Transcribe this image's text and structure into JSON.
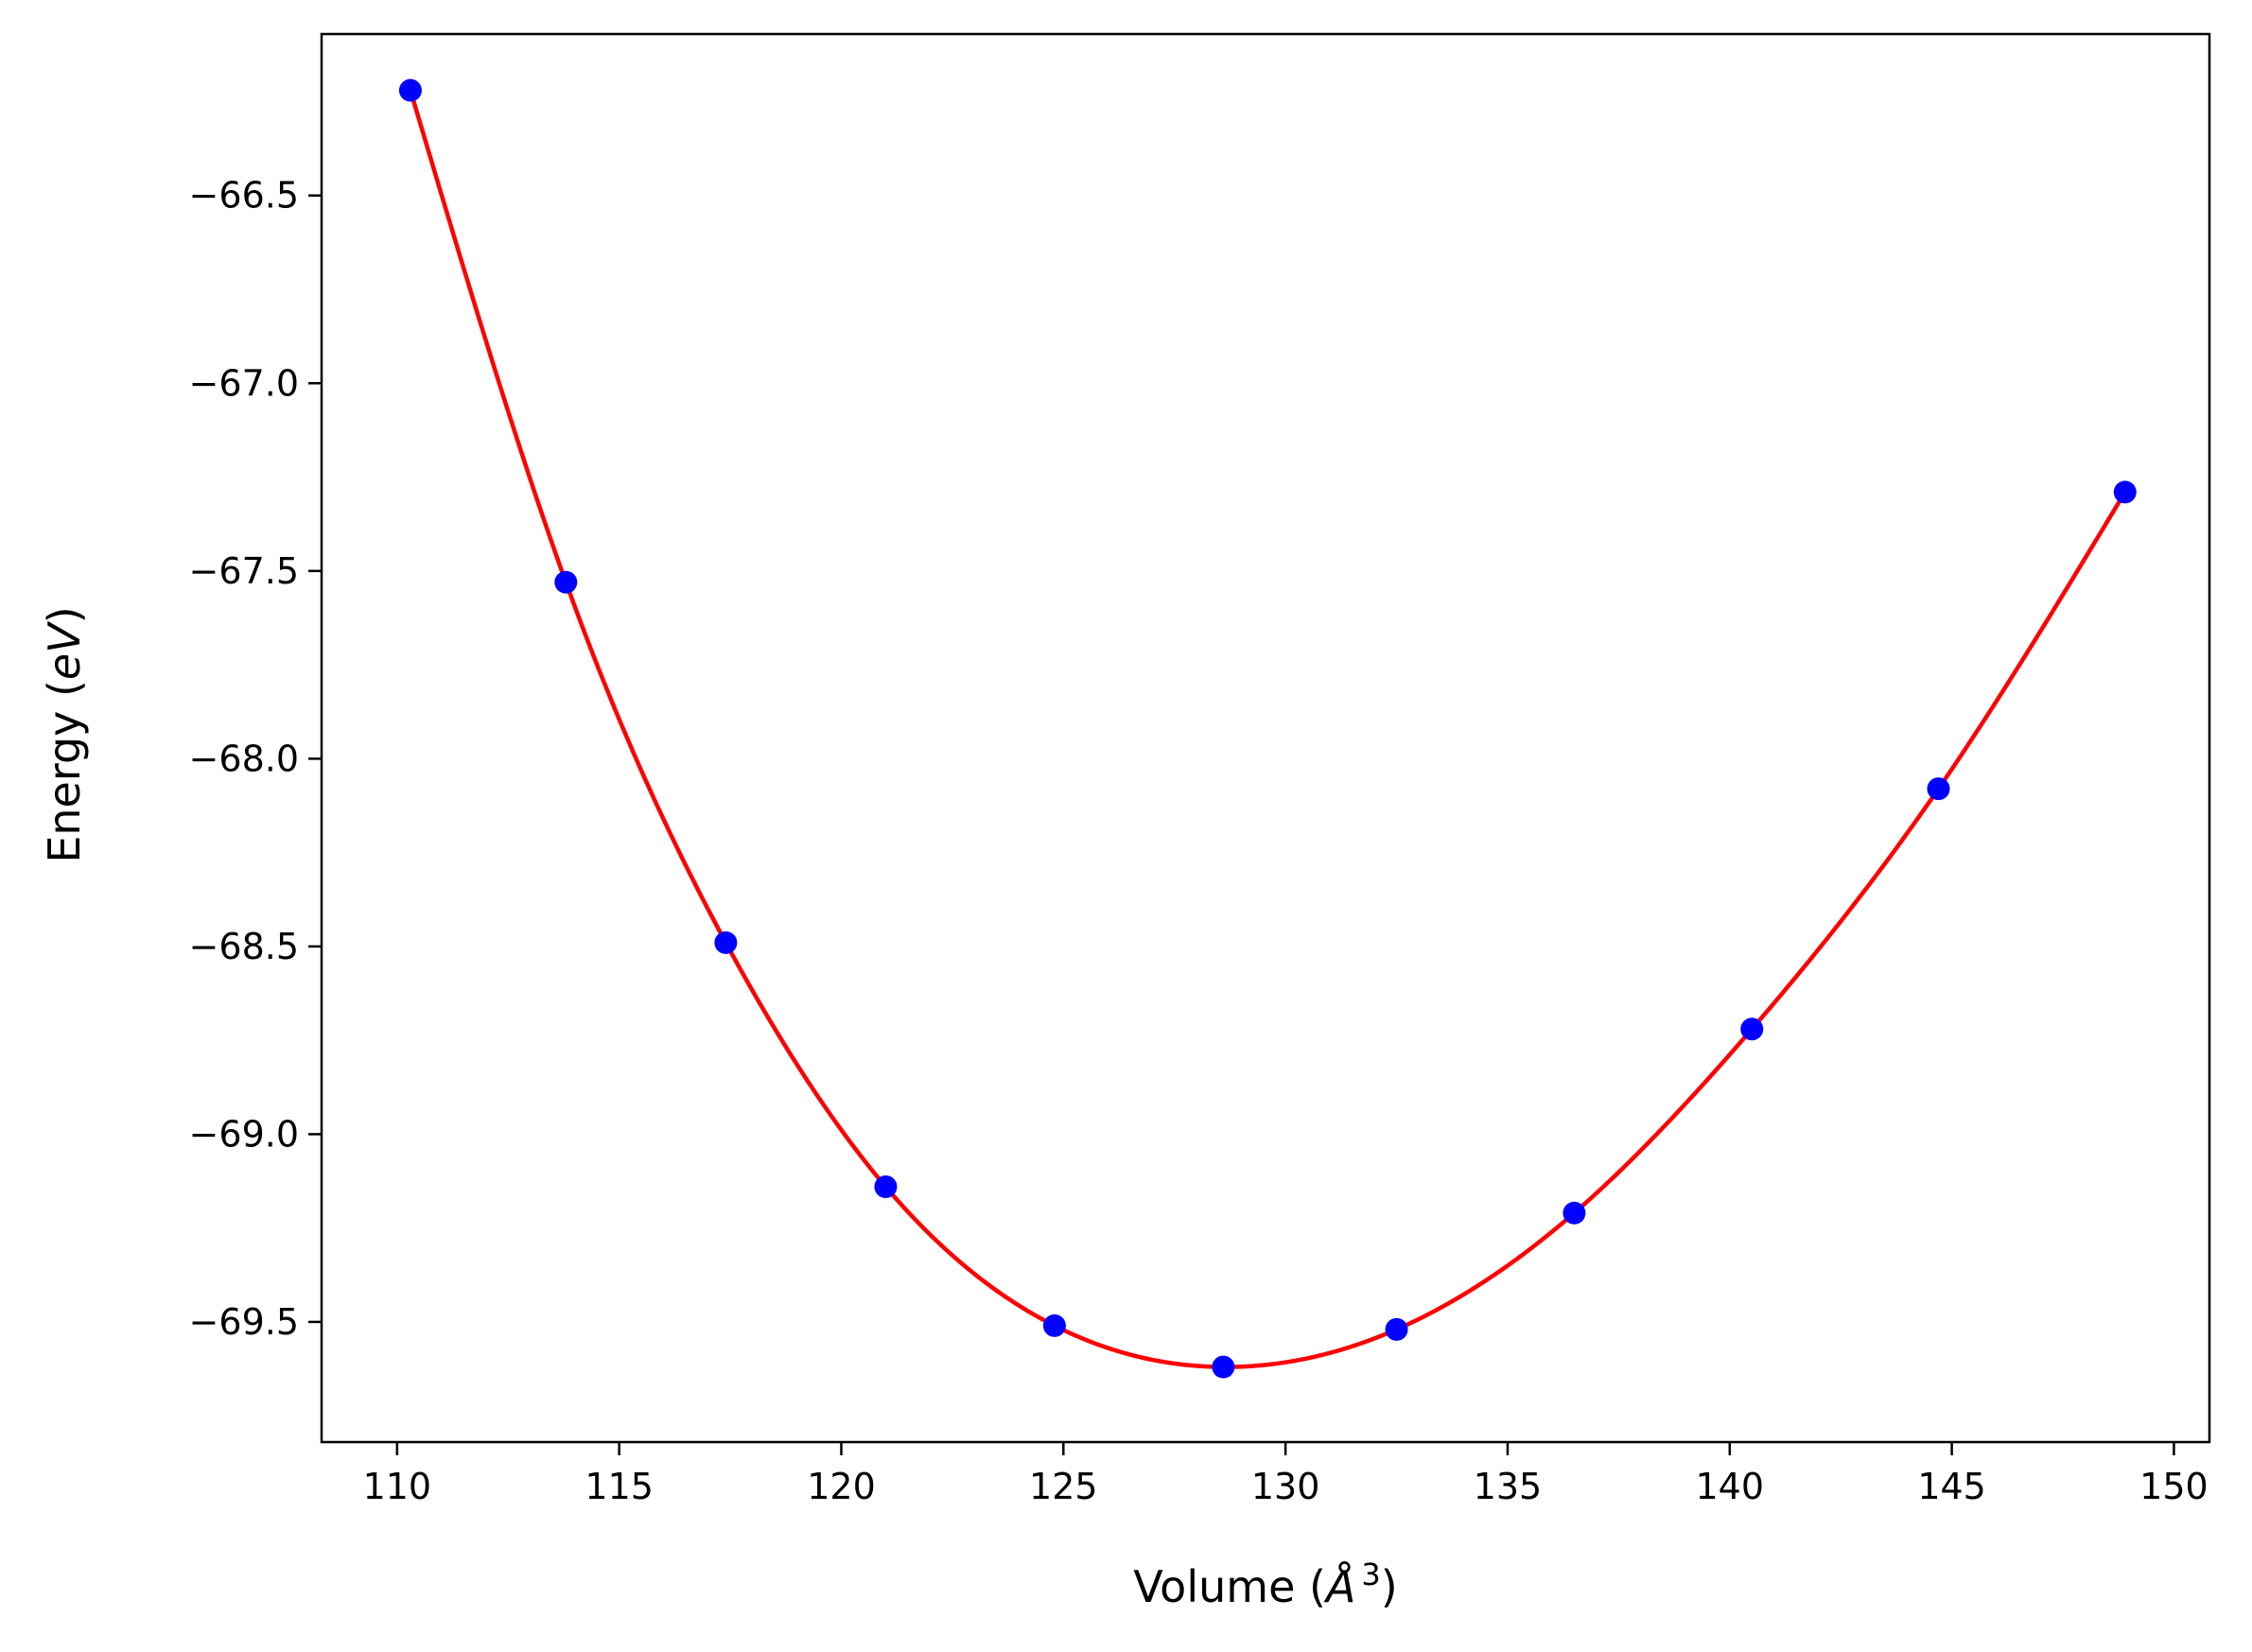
{
  "chart_data": {
    "type": "scatter",
    "title": "",
    "xlabel": {
      "prefix": "Volume (",
      "symbol": "Å",
      "sup": "3",
      "suffix": ")"
    },
    "ylabel": {
      "prefix": "Energy (",
      "unit": "eV",
      "suffix": ")"
    },
    "xlim": [
      108.3,
      150.8
    ],
    "ylim": [
      -69.82,
      -66.07
    ],
    "xticks": [
      110,
      115,
      120,
      125,
      130,
      135,
      140,
      145,
      150
    ],
    "xtick_labels": [
      "110",
      "115",
      "120",
      "125",
      "130",
      "135",
      "140",
      "145",
      "150"
    ],
    "yticks": [
      -66.5,
      -67.0,
      -67.5,
      -68.0,
      -68.5,
      -69.0,
      -69.5
    ],
    "ytick_labels": [
      "−66.5",
      "−67.0",
      "−67.5",
      "−68.0",
      "−68.5",
      "−69.0",
      "−69.5"
    ],
    "grid": false,
    "series": [
      {
        "kind": "points",
        "color": "#0000ff",
        "x": [
          110.3,
          113.8,
          117.4,
          121.0,
          124.8,
          128.6,
          132.5,
          136.5,
          140.5,
          144.7,
          148.9
        ],
        "y": [
          -66.22,
          -67.53,
          -68.49,
          -69.14,
          -69.51,
          -69.62,
          -69.52,
          -69.21,
          -68.72,
          -68.08,
          -67.29
        ]
      },
      {
        "kind": "fit-curve",
        "color": "#ff0000",
        "x": [
          110.3,
          113.8,
          117.4,
          121.0,
          124.8,
          128.6,
          132.5,
          136.5,
          140.5,
          144.7,
          148.9
        ],
        "y": [
          -66.22,
          -67.53,
          -68.49,
          -69.14,
          -69.51,
          -69.62,
          -69.52,
          -69.21,
          -68.72,
          -68.08,
          -67.29
        ]
      }
    ]
  }
}
